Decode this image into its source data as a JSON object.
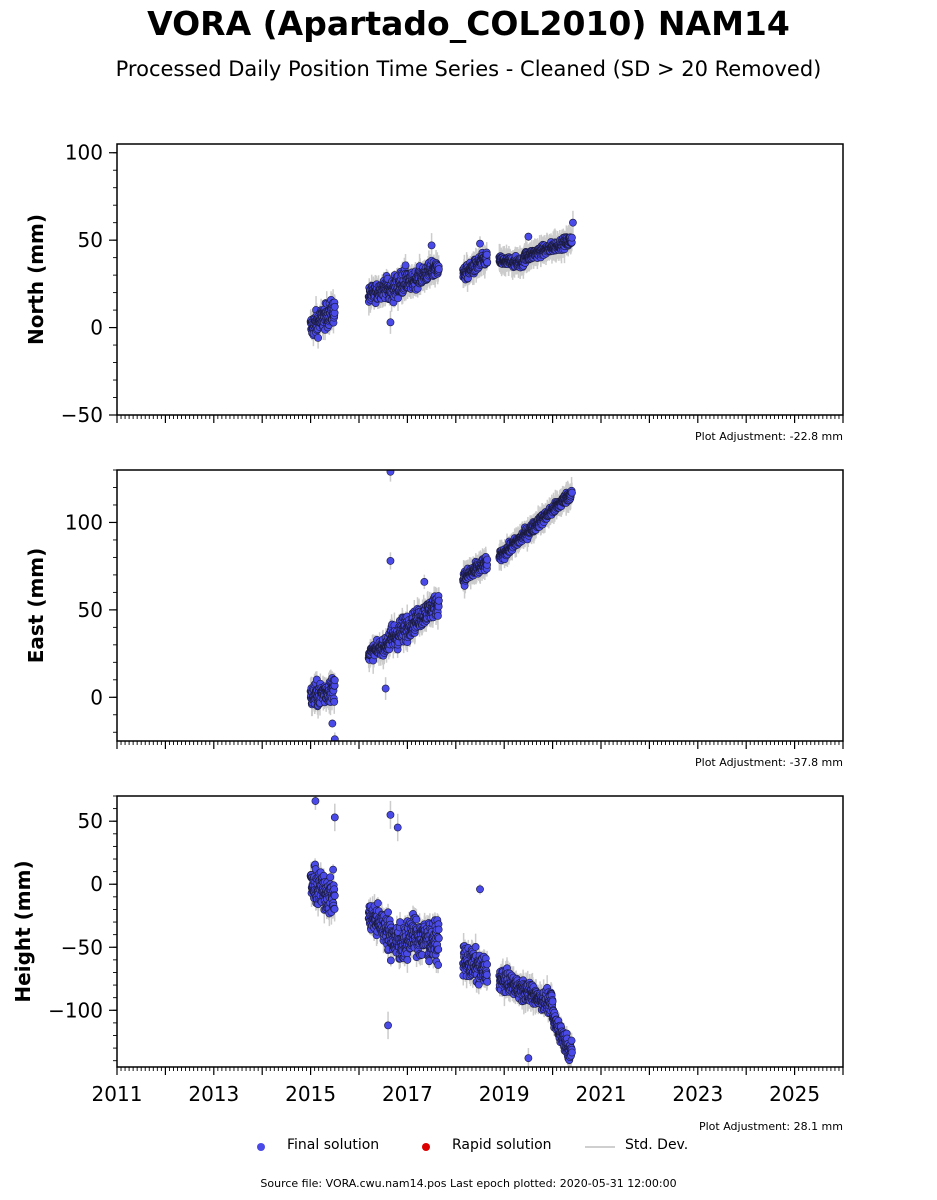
{
  "title": "VORA (Apartado_COL2010) NAM14",
  "subtitle": "Processed Daily Position Time Series - Cleaned (SD > 20 Removed)",
  "legend": {
    "final": "Final solution",
    "rapid": "Rapid solution",
    "std": "Std. Dev."
  },
  "colors": {
    "final": "#4a4ae8",
    "rapid": "#dd0000",
    "std": "#cccccc"
  },
  "source": "Source file: VORA.cwu.nam14.pos  Last epoch plotted: 2020-05-31 12:00:00",
  "chart_data": [
    {
      "type": "scatter",
      "ylabel": "North (mm)",
      "adjustment": "Plot Adjustment: -22.8 mm",
      "xlim": [
        2011,
        2026
      ],
      "ylim": [
        -50,
        105
      ],
      "yticks": [
        "100",
        "50",
        "0",
        "−50"
      ],
      "ytick_values": [
        100,
        50,
        0,
        -50
      ],
      "xtick_labels": [],
      "segments": [
        {
          "x": [
            2015.0,
            2015.5
          ],
          "y": [
            0,
            10
          ],
          "spread": 7
        },
        {
          "x": [
            2016.2,
            2016.6
          ],
          "y": [
            18,
            24
          ],
          "spread": 5
        },
        {
          "x": [
            2016.6,
            2017.0
          ],
          "y": [
            20,
            28
          ],
          "spread": 7
        },
        {
          "x": [
            2017.0,
            2017.65
          ],
          "y": [
            25,
            35
          ],
          "spread": 5
        },
        {
          "x": [
            2018.15,
            2018.65
          ],
          "y": [
            30,
            40
          ],
          "spread": 4
        },
        {
          "x": [
            2018.9,
            2019.4
          ],
          "y": [
            38,
            37
          ],
          "spread": 3
        },
        {
          "x": [
            2019.4,
            2020.4
          ],
          "y": [
            40,
            50
          ],
          "spread": 3
        }
      ],
      "outliers": [
        [
          2016.65,
          3
        ],
        [
          2017.5,
          47
        ],
        [
          2018.5,
          48
        ],
        [
          2019.5,
          52
        ],
        [
          2020.42,
          60
        ]
      ]
    },
    {
      "type": "scatter",
      "ylabel": "East (mm)",
      "adjustment": "Plot Adjustment: -37.8 mm",
      "xlim": [
        2011,
        2026
      ],
      "ylim": [
        -25,
        130
      ],
      "yticks": [
        "100",
        "50",
        "0"
      ],
      "ytick_values": [
        100,
        50,
        0
      ],
      "xtick_labels": [],
      "segments": [
        {
          "x": [
            2015.0,
            2015.5
          ],
          "y": [
            0,
            5
          ],
          "spread": 7
        },
        {
          "x": [
            2016.2,
            2016.6
          ],
          "y": [
            25,
            30
          ],
          "spread": 4
        },
        {
          "x": [
            2016.6,
            2017.0
          ],
          "y": [
            32,
            40
          ],
          "spread": 8
        },
        {
          "x": [
            2017.0,
            2017.65
          ],
          "y": [
            40,
            54
          ],
          "spread": 6
        },
        {
          "x": [
            2018.15,
            2018.65
          ],
          "y": [
            68,
            77
          ],
          "spread": 4
        },
        {
          "x": [
            2018.9,
            2020.4
          ],
          "y": [
            80,
            117
          ],
          "spread": 3
        }
      ],
      "outliers": [
        [
          2016.65,
          129
        ],
        [
          2016.65,
          78
        ],
        [
          2015.5,
          -24
        ],
        [
          2016.55,
          5
        ],
        [
          2017.35,
          66
        ],
        [
          2015.45,
          -15
        ]
      ]
    },
    {
      "type": "scatter",
      "ylabel": "Height (mm)",
      "adjustment": "Plot Adjustment: 28.1 mm",
      "xlim": [
        2011,
        2026
      ],
      "ylim": [
        -145,
        70
      ],
      "yticks": [
        "50",
        "0",
        "−50",
        "−100"
      ],
      "ytick_values": [
        50,
        0,
        -50,
        -100
      ],
      "xtick_labels": [
        "2011",
        "2013",
        "2015",
        "2017",
        "2019",
        "2021",
        "2023",
        "2025"
      ],
      "xtick_values": [
        2011,
        2013,
        2015,
        2017,
        2019,
        2021,
        2023,
        2025
      ],
      "segments": [
        {
          "x": [
            2015.0,
            2015.5
          ],
          "y": [
            0,
            -10
          ],
          "spread": 15
        },
        {
          "x": [
            2016.2,
            2016.6
          ],
          "y": [
            -25,
            -35
          ],
          "spread": 12
        },
        {
          "x": [
            2016.6,
            2017.0
          ],
          "y": [
            -40,
            -50
          ],
          "spread": 14
        },
        {
          "x": [
            2017.0,
            2017.65
          ],
          "y": [
            -40,
            -45
          ],
          "spread": 15
        },
        {
          "x": [
            2018.15,
            2018.65
          ],
          "y": [
            -60,
            -70
          ],
          "spread": 12
        },
        {
          "x": [
            2018.9,
            2020.0
          ],
          "y": [
            -75,
            -95
          ],
          "spread": 8
        },
        {
          "x": [
            2020.0,
            2020.4
          ],
          "y": [
            -105,
            -135
          ],
          "spread": 8
        }
      ],
      "outliers": [
        [
          2015.1,
          66
        ],
        [
          2015.5,
          53
        ],
        [
          2016.65,
          55
        ],
        [
          2016.8,
          45
        ],
        [
          2018.5,
          -4
        ],
        [
          2016.6,
          -112
        ],
        [
          2019.5,
          -138
        ]
      ]
    }
  ]
}
